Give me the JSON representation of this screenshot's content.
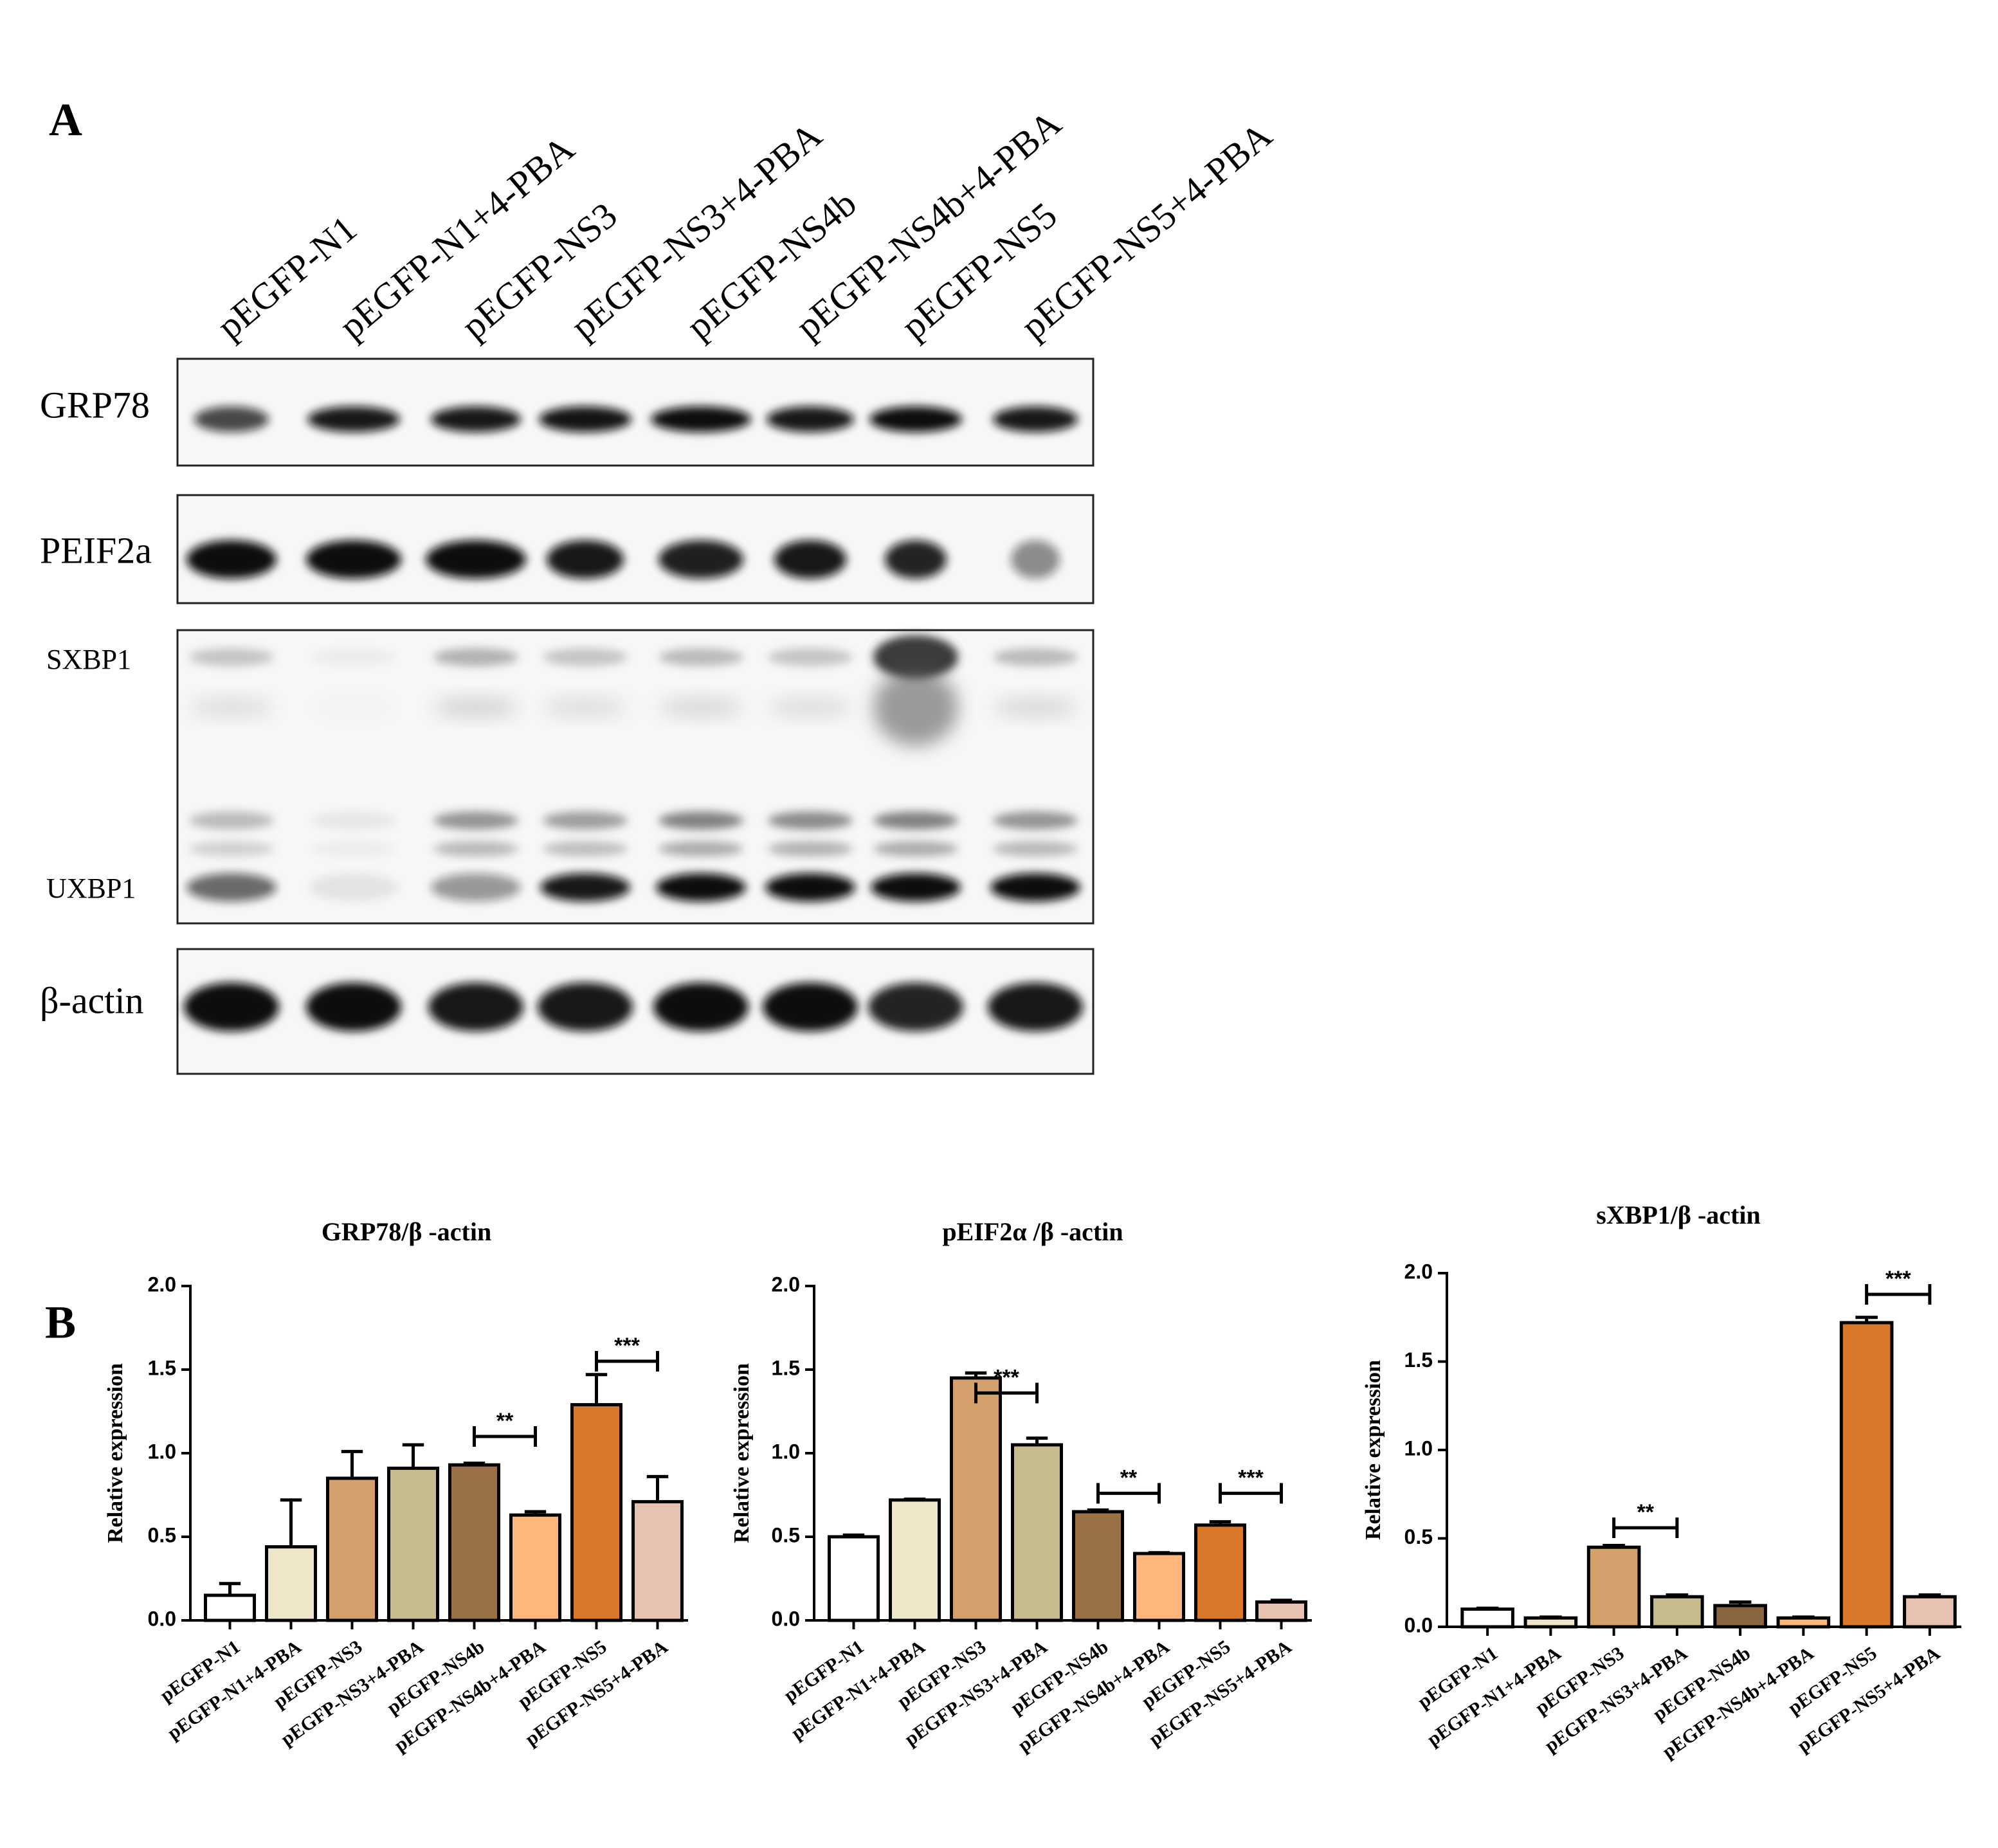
{
  "panel_a": {
    "letter": "A",
    "lanes": [
      "pEGFP-N1",
      "pEGFP-N1+4-PBA",
      "pEGFP-NS3",
      "pEGFP-NS3+4-PBA",
      "pEGFP-NS4b",
      "pEGFP-NS4b+4-PBA",
      "pEGFP-NS5",
      "pEGFP-NS5+4-PBA"
    ],
    "bands": [
      "GRP78",
      "PEIF2a",
      "SXBP1",
      "UXBP1",
      "β-actin"
    ]
  },
  "panel_b": {
    "letter": "B"
  },
  "chart_data": [
    {
      "type": "bar",
      "title": "GRP78/β -actin",
      "y_label": "Relative expression",
      "categories": [
        "pEGFP-N1",
        "pEGFP-N1+4-PBA",
        "pEGFP-NS3",
        "pEGFP-NS3+4-PBA",
        "pEGFP-NS4b",
        "pEGFP-NS4b+4-PBA",
        "pEGFP-NS5",
        "pEGFP-NS5+4-PBA"
      ],
      "values": [
        0.15,
        0.44,
        0.85,
        0.91,
        0.93,
        0.63,
        1.29,
        0.71
      ],
      "errors": [
        0.07,
        0.28,
        0.16,
        0.14,
        0.01,
        0.02,
        0.18,
        0.15
      ],
      "colors": [
        "#ffffff",
        "#efe6c9",
        "#d4a06c",
        "#c6bc8d",
        "#9a7146",
        "#ffb67a",
        "#d9782a",
        "#e8c2b1"
      ],
      "ylim": [
        0,
        2
      ],
      "yticks": [
        {
          "value": 0,
          "label": "0.0"
        },
        0.5,
        {
          "value": 1,
          "label": "1.0"
        },
        1.5,
        {
          "value": 2,
          "label": "2.0"
        }
      ],
      "significance": [
        {
          "label": "**",
          "from": "pEGFP-NS4b",
          "to": "pEGFP-NS4b+4-PBA",
          "y": 1.1
        },
        {
          "label": "***",
          "from": "pEGFP-NS5",
          "to": "pEGFP-NS5+4-PBA",
          "y": 1.55
        }
      ]
    },
    {
      "type": "bar",
      "title": "pEIF2α /β -actin",
      "y_label": "Relative expression",
      "categories": [
        "pEGFP-N1",
        "pEGFP-N1+4-PBA",
        "pEGFP-NS3",
        "pEGFP-NS3+4-PBA",
        "pEGFP-NS4b",
        "pEGFP-NS4b+4-PBA",
        "pEGFP-NS5",
        "pEGFP-NS5+4-PBA"
      ],
      "values": [
        0.5,
        0.72,
        1.45,
        1.05,
        0.65,
        0.4,
        0.57,
        0.11
      ],
      "errors": [
        0.01,
        0.005,
        0.03,
        0.04,
        0.01,
        0.005,
        0.02,
        0.01
      ],
      "colors": [
        "#ffffff",
        "#efe6c9",
        "#d4a06c",
        "#c6bc8d",
        "#9a7146",
        "#ffb67a",
        "#d9782a",
        "#e8c2b1"
      ],
      "ylim": [
        0,
        2
      ],
      "yticks": [
        {
          "value": 0,
          "label": "0.0"
        },
        0.5,
        {
          "value": 1,
          "label": "1.0"
        },
        1.5,
        {
          "value": 2,
          "label": "2.0"
        }
      ],
      "significance": [
        {
          "label": "***",
          "from": "pEGFP-NS3",
          "to": "pEGFP-NS3+4-PBA",
          "y": 1.36
        },
        {
          "label": "**",
          "from": "pEGFP-NS4b",
          "to": "pEGFP-NS4b+4-PBA",
          "y": 0.76
        },
        {
          "label": "***",
          "from": "pEGFP-NS5",
          "to": "pEGFP-NS5+4-PBA",
          "y": 0.76
        }
      ]
    },
    {
      "type": "bar",
      "title": "sXBP1/β -actin",
      "y_label": "Relative expression",
      "categories": [
        "pEGFP-N1",
        "pEGFP-N1+4-PBA",
        "pEGFP-NS3",
        "pEGFP-NS3+4-PBA",
        "pEGFP-NS4b",
        "pEGFP-NS4b+4-PBA",
        "pEGFP-NS5",
        "pEGFP-NS5+4-PBA"
      ],
      "values": [
        0.1,
        0.05,
        0.45,
        0.17,
        0.12,
        0.05,
        1.72,
        0.17
      ],
      "errors": [
        0.005,
        0.005,
        0.01,
        0.01,
        0.02,
        0.005,
        0.03,
        0.01
      ],
      "colors": [
        "#ffffff",
        "#efe6c9",
        "#d4a06c",
        "#c6bc8d",
        "#8a6640",
        "#ffb67a",
        "#d9782a",
        "#e8c2b1"
      ],
      "ylim": [
        0,
        2
      ],
      "yticks": [
        {
          "value": 0,
          "label": "0.0"
        },
        0.5,
        {
          "value": 1,
          "label": "1.0"
        },
        1.5,
        {
          "value": 2,
          "label": "2.0"
        }
      ],
      "significance": [
        {
          "label": "**",
          "from": "pEGFP-NS3",
          "to": "pEGFP-NS3+4-PBA",
          "y": 0.56
        },
        {
          "label": "***",
          "from": "pEGFP-NS5",
          "to": "pEGFP-NS5+4-PBA",
          "y": 1.88
        }
      ]
    }
  ]
}
